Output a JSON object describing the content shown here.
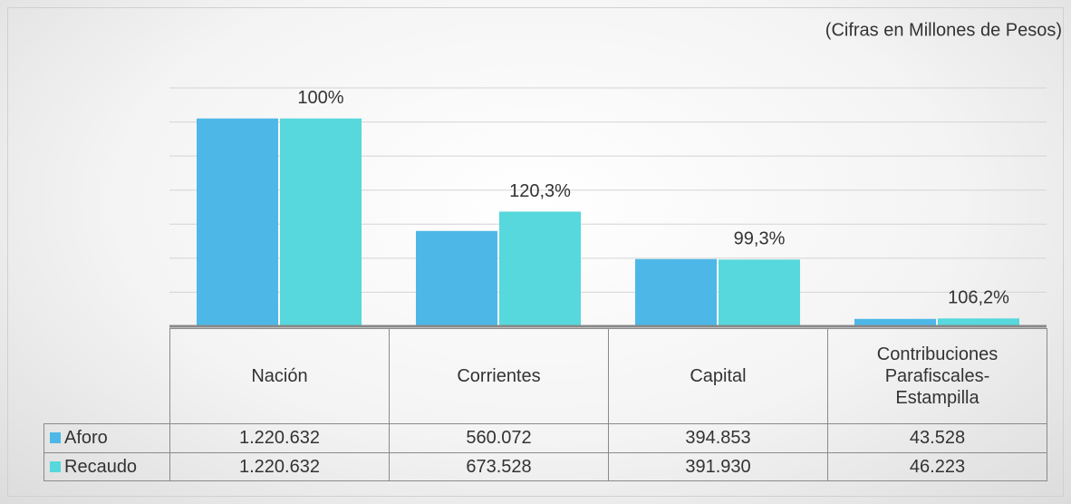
{
  "chart_data": {
    "type": "bar",
    "subtitle": "(Cifras en Millones de Pesos)",
    "categories": [
      "Nación",
      "Corrientes",
      "Capital",
      "Contribuciones Parafiscales-Estampilla"
    ],
    "series": [
      {
        "name": "Aforo",
        "color": "#4db8e8",
        "values": [
          1220632,
          560072,
          394853,
          43528
        ],
        "value_labels": [
          "1.220.632",
          "560.072",
          "394.853",
          "43.528"
        ]
      },
      {
        "name": "Recaudo",
        "color": "#56d8dc",
        "values": [
          1220632,
          673528,
          391930,
          46223
        ],
        "value_labels": [
          "1.220.632",
          "673.528",
          "391.930",
          "46.223"
        ]
      }
    ],
    "annotations": [
      "100%",
      "120,3%",
      "99,3%",
      "106,2%"
    ],
    "ylim": [
      0,
      1400000
    ],
    "yticks": [
      0,
      200000,
      400000,
      600000,
      800000,
      1000000,
      1200000,
      1400000
    ],
    "grid": true
  }
}
